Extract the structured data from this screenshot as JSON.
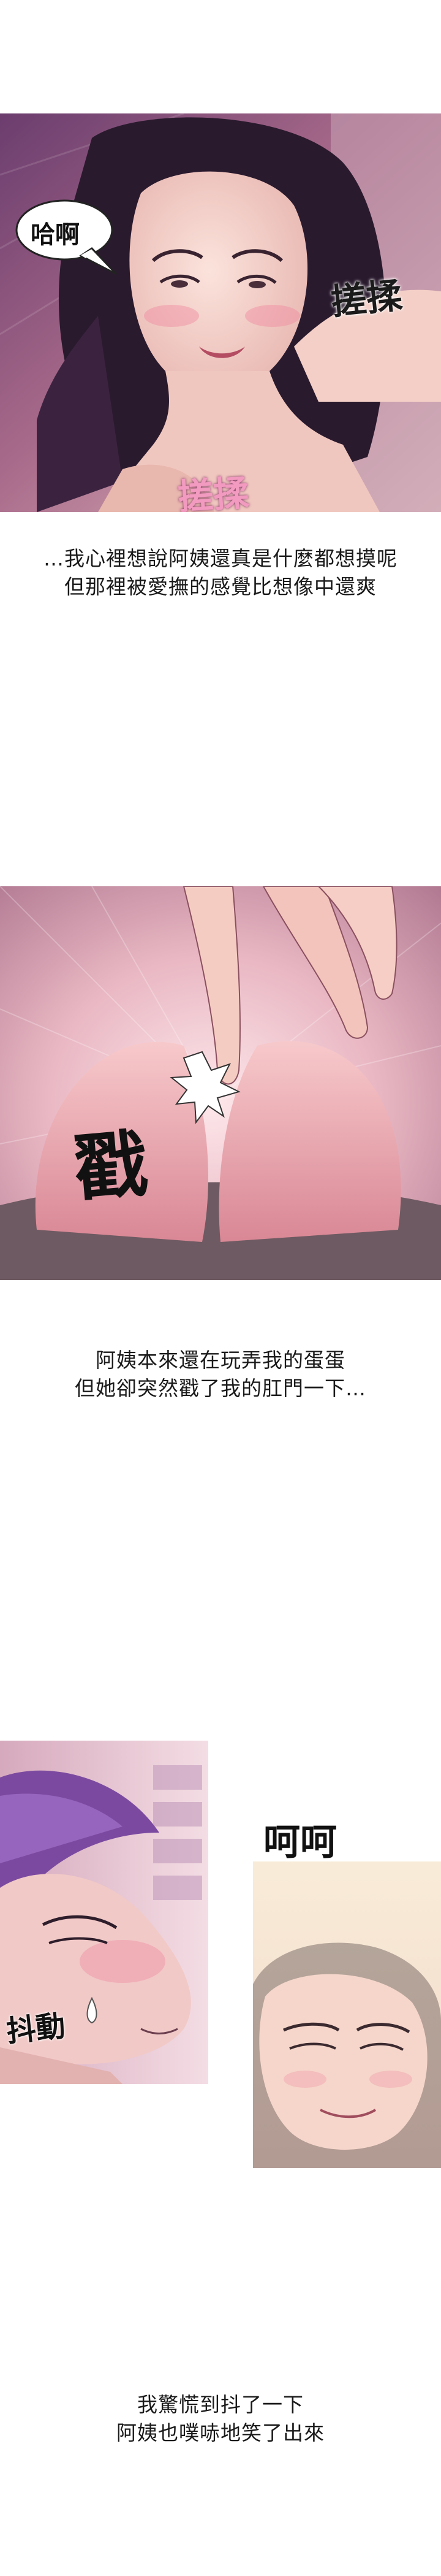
{
  "panels": [
    {
      "sfx": {
        "moan": "哈啊",
        "rub_right": "搓揉",
        "rub_bottom": "搓揉"
      }
    },
    {
      "sfx": {
        "poke": "戳"
      }
    },
    {
      "sfx": {
        "twitch": "抖動",
        "chuckle": "呵呵"
      }
    }
  ],
  "captions": [
    {
      "line1": "…我心裡想說阿姨還真是什麼都想摸呢",
      "line2": "但那裡被愛撫的感覺比想像中還爽"
    },
    {
      "line1": "阿姨本來還在玩弄我的蛋蛋",
      "line2": "但她卻突然戳了我的肛門一下…"
    },
    {
      "line1": "我驚慌到抖了一下",
      "line2": "阿姨也噗哧地笑了出來"
    }
  ]
}
